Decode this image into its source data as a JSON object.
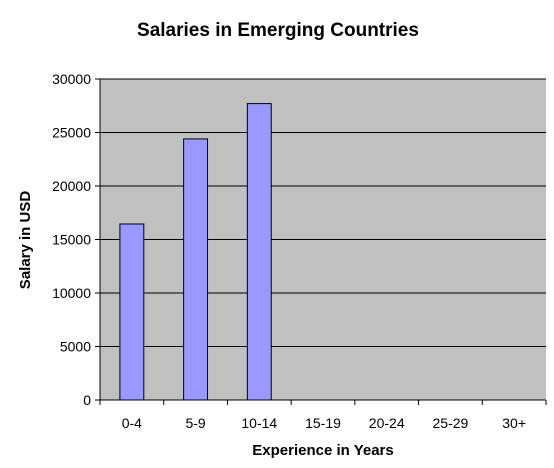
{
  "chart_data": {
    "type": "bar",
    "title": "Salaries in Emerging Countries",
    "xlabel": "Experience in Years",
    "ylabel": "Salary in USD",
    "categories": [
      "0-4",
      "5-9",
      "10-14",
      "15-19",
      "20-24",
      "25-29",
      "30+"
    ],
    "values": [
      16450,
      24400,
      27700,
      null,
      null,
      null,
      null
    ],
    "ylim": [
      0,
      30000
    ],
    "yticks": [
      "0",
      "5000",
      "10000",
      "15000",
      "20000",
      "25000",
      "30000"
    ],
    "grid": true,
    "legend": "none",
    "colors": {
      "bar_fill": "#9999ff",
      "bar_stroke": "#000000",
      "plot_background": "#c0c0c0",
      "gridline": "#000000"
    }
  }
}
